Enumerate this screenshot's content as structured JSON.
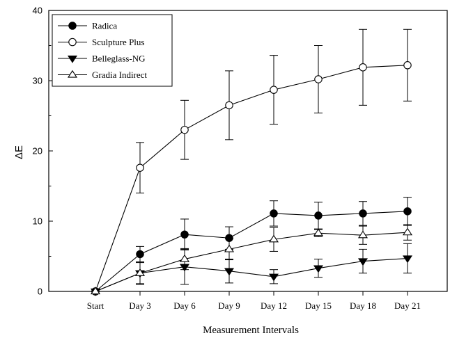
{
  "chart_data": {
    "type": "line",
    "xlabel": "Measurement Intervals",
    "ylabel": "ΔE",
    "ylim": [
      0,
      40
    ],
    "yticks": [
      0,
      10,
      20,
      30,
      40
    ],
    "categories": [
      "Start",
      "Day 3",
      "Day 6",
      "Day 9",
      "Day 12",
      "Day 15",
      "Day 18",
      "Day 21"
    ],
    "legend_position": "top-left",
    "grid": false,
    "series": [
      {
        "name": "Radica",
        "marker": "filled-circle",
        "values": [
          0,
          5.3,
          8.1,
          7.6,
          11.1,
          10.8,
          11.1,
          11.4
        ],
        "errors": [
          0,
          1.1,
          2.2,
          1.6,
          1.8,
          1.9,
          1.7,
          2.0
        ]
      },
      {
        "name": "Sculpture Plus",
        "marker": "open-circle",
        "values": [
          0,
          17.6,
          23.0,
          26.5,
          28.7,
          30.2,
          31.9,
          32.2
        ],
        "errors": [
          0,
          3.6,
          4.2,
          4.9,
          4.9,
          4.8,
          5.4,
          5.1
        ]
      },
      {
        "name": "Belleglass-NG",
        "marker": "filled-triangle-down",
        "values": [
          0,
          2.6,
          3.5,
          2.9,
          2.1,
          3.3,
          4.3,
          4.7
        ],
        "errors": [
          0,
          1.6,
          2.5,
          1.7,
          1.0,
          1.3,
          1.7,
          2.1
        ]
      },
      {
        "name": "Gradia Indirect",
        "marker": "open-triangle-up",
        "values": [
          0,
          2.6,
          4.6,
          6.0,
          7.4,
          8.3,
          8.0,
          8.4
        ],
        "errors": [
          0,
          1.5,
          1.5,
          1.5,
          1.7,
          0.5,
          1.3,
          1.1
        ]
      }
    ]
  }
}
